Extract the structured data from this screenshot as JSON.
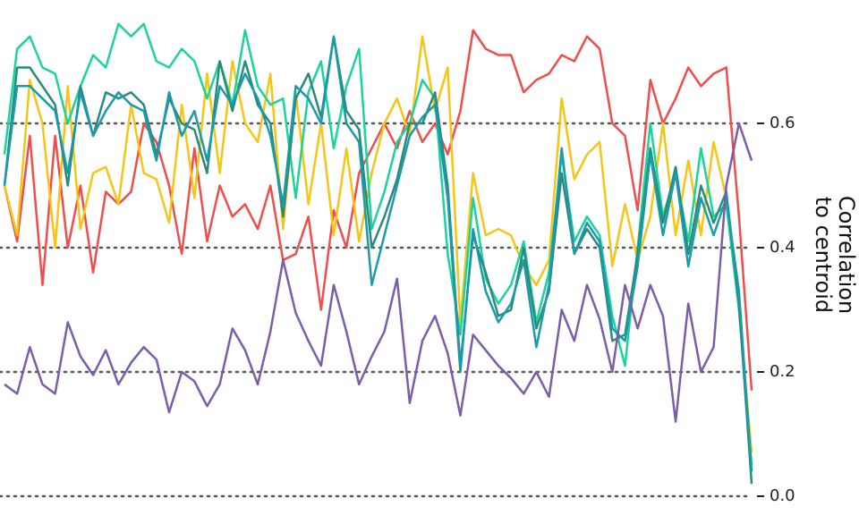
{
  "chart_data": {
    "type": "line",
    "ylabel": [
      "Correlation",
      "to centroid"
    ],
    "x": [
      0,
      1,
      2,
      3,
      4,
      5,
      6,
      7,
      8,
      9,
      10,
      11,
      12,
      13,
      14,
      15,
      16,
      17,
      18,
      19,
      20,
      21,
      22,
      23,
      24,
      25,
      26,
      27,
      28,
      29,
      30,
      31,
      32,
      33,
      34,
      35,
      36,
      37,
      38,
      39,
      40,
      41,
      42,
      43,
      44,
      45,
      46,
      47,
      48,
      49,
      50,
      51,
      52,
      53,
      54,
      55,
      56,
      57,
      58,
      59
    ],
    "xlim": [
      0,
      59
    ],
    "ylim": [
      0,
      0.8
    ],
    "yticks": [
      {
        "value": 0,
        "label": "0.0"
      },
      0.2,
      0.4,
      0.6
    ],
    "grid": true,
    "axis_side": "right",
    "series": [
      {
        "color": "#f04d4d",
        "values": [
          0.5,
          0.41,
          0.58,
          0.34,
          0.58,
          0.4,
          0.5,
          0.36,
          0.49,
          0.47,
          0.49,
          0.6,
          0.57,
          0.5,
          0.39,
          0.56,
          0.41,
          0.5,
          0.45,
          0.47,
          0.43,
          0.5,
          0.38,
          0.39,
          0.45,
          0.3,
          0.46,
          0.4,
          0.52,
          0.56,
          0.6,
          0.56,
          0.62,
          0.57,
          0.6,
          0.55,
          0.62,
          0.75,
          0.72,
          0.71,
          0.71,
          0.65,
          0.67,
          0.68,
          0.71,
          0.7,
          0.74,
          0.72,
          0.6,
          0.58,
          0.46,
          0.67,
          0.6,
          0.64,
          0.69,
          0.66,
          0.68,
          0.69,
          0.45,
          0.17
        ]
      },
      {
        "color": "#f5c518",
        "values": [
          0.5,
          0.42,
          0.67,
          0.6,
          0.4,
          0.66,
          0.43,
          0.52,
          0.53,
          0.47,
          0.63,
          0.52,
          0.51,
          0.44,
          0.63,
          0.48,
          0.68,
          0.52,
          0.7,
          0.6,
          0.57,
          0.68,
          0.43,
          0.65,
          0.47,
          0.6,
          0.42,
          0.56,
          0.41,
          0.52,
          0.6,
          0.64,
          0.58,
          0.74,
          0.62,
          0.69,
          0.28,
          0.52,
          0.42,
          0.43,
          0.42,
          0.37,
          0.34,
          0.38,
          0.64,
          0.51,
          0.55,
          0.57,
          0.37,
          0.47,
          0.38,
          0.45,
          0.6,
          0.42,
          0.54,
          0.42,
          0.57,
          0.48,
          0.3,
          0.07
        ]
      },
      {
        "color": "#1dd39c",
        "values": [
          0.55,
          0.72,
          0.74,
          0.69,
          0.68,
          0.6,
          0.66,
          0.71,
          0.69,
          0.76,
          0.74,
          0.76,
          0.7,
          0.69,
          0.72,
          0.7,
          0.64,
          0.7,
          0.63,
          0.75,
          0.66,
          0.63,
          0.64,
          0.48,
          0.65,
          0.7,
          0.56,
          0.66,
          0.72,
          0.43,
          0.49,
          0.57,
          0.6,
          0.67,
          0.64,
          0.39,
          0.26,
          0.48,
          0.35,
          0.31,
          0.34,
          0.41,
          0.28,
          0.36,
          0.55,
          0.41,
          0.45,
          0.42,
          0.29,
          0.21,
          0.4,
          0.6,
          0.45,
          0.52,
          0.41,
          0.56,
          0.45,
          0.47,
          0.3,
          0.05
        ]
      },
      {
        "color": "#2a8a7c",
        "values": [
          0.5,
          0.69,
          0.69,
          0.66,
          0.63,
          0.5,
          0.66,
          0.58,
          0.65,
          0.64,
          0.65,
          0.63,
          0.55,
          0.64,
          0.6,
          0.59,
          0.52,
          0.7,
          0.62,
          0.7,
          0.63,
          0.6,
          0.45,
          0.64,
          0.68,
          0.61,
          0.74,
          0.62,
          0.59,
          0.4,
          0.45,
          0.51,
          0.6,
          0.6,
          0.65,
          0.5,
          0.21,
          0.42,
          0.36,
          0.29,
          0.3,
          0.4,
          0.27,
          0.33,
          0.52,
          0.39,
          0.43,
          0.4,
          0.25,
          0.26,
          0.39,
          0.56,
          0.44,
          0.53,
          0.39,
          0.5,
          0.44,
          0.49,
          0.31,
          0.02
        ]
      },
      {
        "color": "#1b9aaa",
        "values": [
          0.5,
          0.66,
          0.66,
          0.64,
          0.62,
          0.52,
          0.65,
          0.58,
          0.62,
          0.65,
          0.63,
          0.62,
          0.54,
          0.65,
          0.58,
          0.62,
          0.54,
          0.66,
          0.63,
          0.68,
          0.64,
          0.58,
          0.47,
          0.66,
          0.64,
          0.6,
          0.74,
          0.6,
          0.57,
          0.34,
          0.42,
          0.5,
          0.58,
          0.61,
          0.63,
          0.48,
          0.2,
          0.43,
          0.33,
          0.28,
          0.31,
          0.38,
          0.24,
          0.34,
          0.56,
          0.39,
          0.44,
          0.41,
          0.27,
          0.25,
          0.37,
          0.55,
          0.42,
          0.52,
          0.37,
          0.48,
          0.42,
          0.48,
          0.33,
          0.04
        ]
      },
      {
        "color": "#7b5ea7",
        "values": [
          0.18,
          0.165,
          0.24,
          0.18,
          0.165,
          0.28,
          0.225,
          0.195,
          0.235,
          0.18,
          0.215,
          0.24,
          0.22,
          0.135,
          0.2,
          0.185,
          0.145,
          0.18,
          0.27,
          0.235,
          0.18,
          0.265,
          0.38,
          0.295,
          0.25,
          0.21,
          0.34,
          0.265,
          0.18,
          0.225,
          0.265,
          0.35,
          0.15,
          0.25,
          0.29,
          0.23,
          0.13,
          0.26,
          0.235,
          0.21,
          0.19,
          0.165,
          0.2,
          0.16,
          0.3,
          0.25,
          0.34,
          0.285,
          0.2,
          0.34,
          0.27,
          0.34,
          0.29,
          0.12,
          0.31,
          0.2,
          0.24,
          0.5,
          0.6,
          0.54
        ]
      }
    ]
  }
}
